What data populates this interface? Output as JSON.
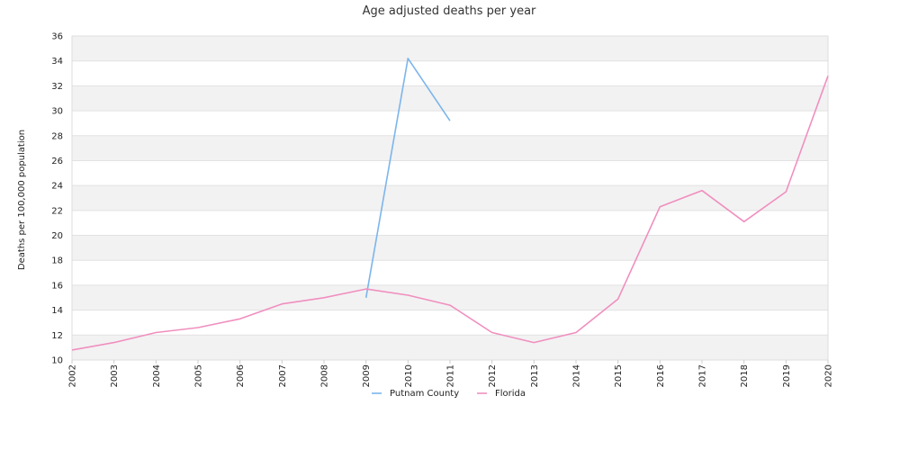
{
  "chart_data": {
    "type": "line",
    "title": "Age adjusted deaths per year",
    "xlabel": "",
    "ylabel": "Deaths per 100,000 population",
    "x": [
      "2002",
      "2003",
      "2004",
      "2005",
      "2006",
      "2007",
      "2008",
      "2009",
      "2010",
      "2011",
      "2012",
      "2013",
      "2014",
      "2015",
      "2016",
      "2017",
      "2018",
      "2019",
      "2020"
    ],
    "ylim": [
      10,
      36
    ],
    "yticks": [
      10,
      12,
      14,
      16,
      18,
      20,
      22,
      24,
      26,
      28,
      30,
      32,
      34,
      36
    ],
    "grid": "alternating horizontal bands",
    "legend_position": "bottom",
    "series": [
      {
        "name": "Putnam County",
        "color": "#7cb5ec",
        "values": [
          null,
          null,
          null,
          null,
          null,
          null,
          null,
          15.0,
          34.2,
          29.2,
          null,
          null,
          null,
          null,
          null,
          null,
          null,
          null,
          null
        ]
      },
      {
        "name": "Florida",
        "color": "#f08fbf",
        "values": [
          10.8,
          11.4,
          12.2,
          12.6,
          13.3,
          14.5,
          15.0,
          15.7,
          15.2,
          14.4,
          12.2,
          11.4,
          12.2,
          14.9,
          22.3,
          23.6,
          21.1,
          23.5,
          32.8
        ]
      }
    ]
  }
}
